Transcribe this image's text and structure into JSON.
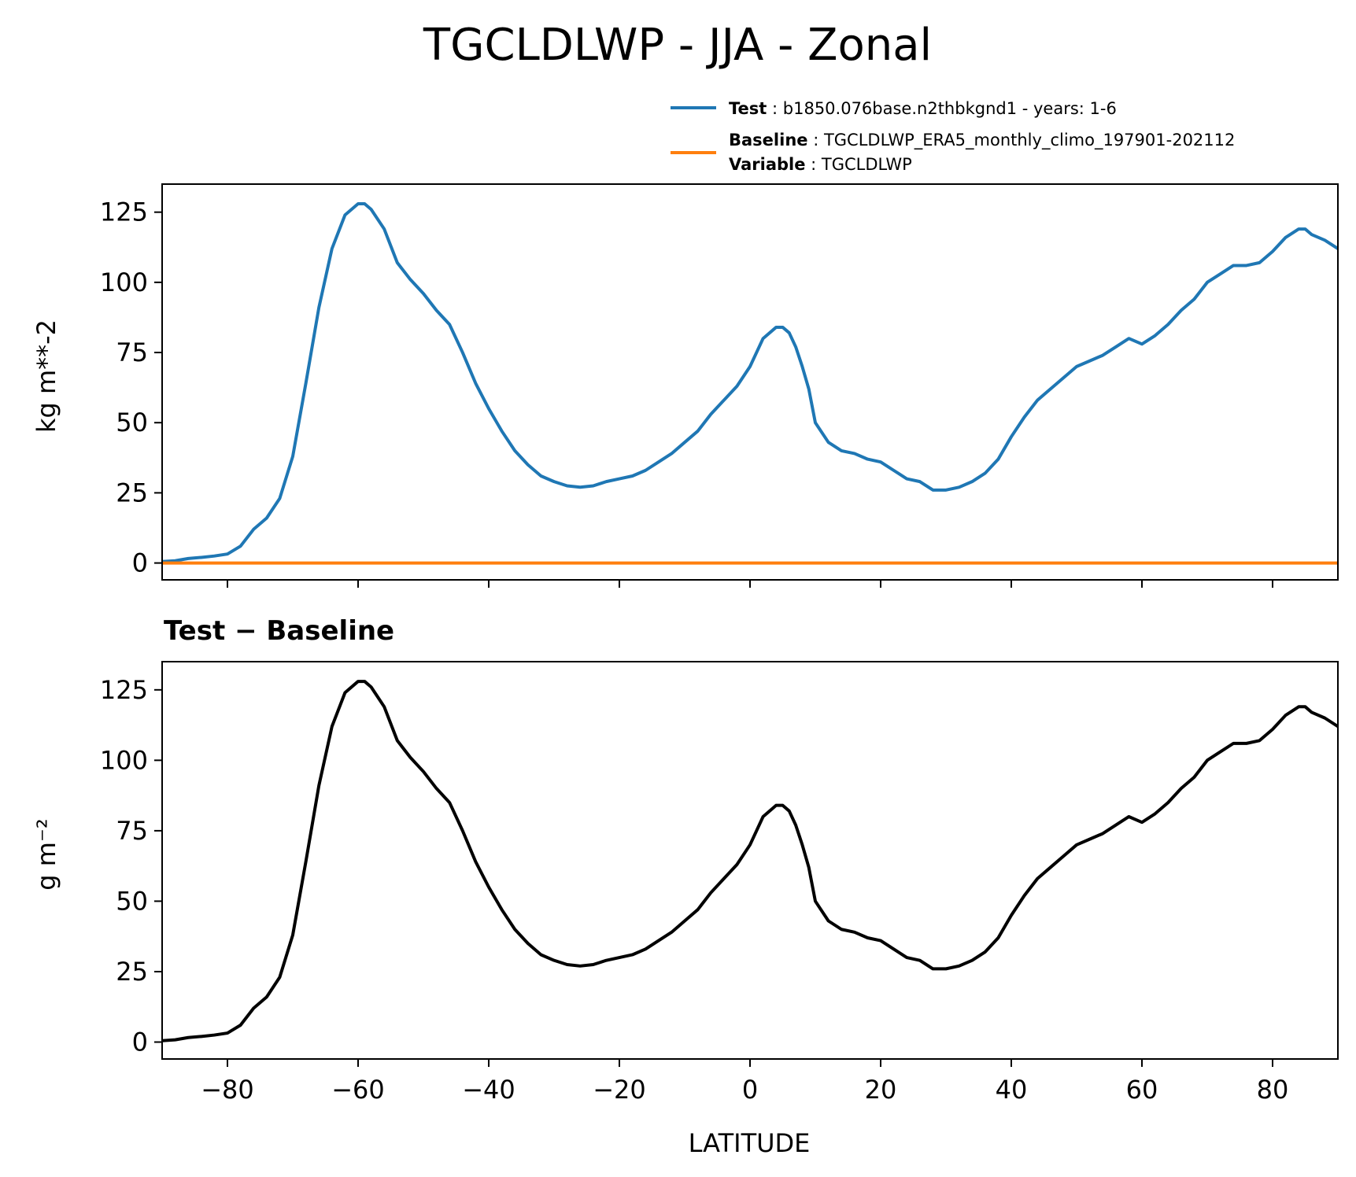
{
  "figure": {
    "title": "TGCLDLWP - JJA - Zonal"
  },
  "legend": {
    "test_key": "Test",
    "test_value": "b1850.076base.n2thbkgnd1 - years: 1-6",
    "baseline_key": "Baseline",
    "baseline_value": "TGCLDLWP_ERA5_monthly_climo_197901-202112",
    "variable_key": "Variable",
    "variable_value": "TGCLDLWP"
  },
  "colors": {
    "test": "#1f77b4",
    "baseline": "#ff7f0e",
    "difference": "#000000"
  },
  "chart_data": [
    {
      "type": "line",
      "title": "",
      "xlabel": "",
      "ylabel": "kg m**-2",
      "xlim": [
        -90,
        90
      ],
      "ylim": [
        -6,
        135
      ],
      "x_ticks": [
        -80,
        -60,
        -40,
        -20,
        0,
        20,
        40,
        60,
        80
      ],
      "y_ticks": [
        0,
        25,
        50,
        75,
        100,
        125
      ],
      "grid": false,
      "legend_position": "above-right",
      "x": [
        -90,
        -88,
        -86,
        -84,
        -82,
        -80,
        -78,
        -76,
        -74,
        -72,
        -70,
        -68,
        -66,
        -64,
        -62,
        -60,
        -59,
        -58,
        -56,
        -54,
        -52,
        -50,
        -48,
        -46,
        -44,
        -42,
        -40,
        -38,
        -36,
        -34,
        -32,
        -30,
        -28,
        -26,
        -24,
        -22,
        -20,
        -18,
        -16,
        -14,
        -12,
        -10,
        -8,
        -6,
        -4,
        -2,
        0,
        2,
        4,
        5,
        6,
        7,
        8,
        9,
        10,
        12,
        14,
        16,
        18,
        20,
        22,
        24,
        26,
        28,
        30,
        32,
        34,
        36,
        38,
        40,
        42,
        44,
        46,
        48,
        50,
        52,
        54,
        56,
        58,
        60,
        62,
        64,
        66,
        68,
        70,
        72,
        74,
        76,
        78,
        80,
        82,
        84,
        85,
        86,
        88,
        90
      ],
      "series": [
        {
          "name": "Test",
          "values": [
            0.5,
            0.8,
            1.6,
            2.0,
            2.5,
            3.2,
            6,
            12,
            16,
            23,
            38,
            64,
            91,
            112,
            124,
            128,
            128,
            126,
            119,
            107,
            101,
            96,
            90,
            85,
            75,
            64,
            55,
            47,
            40,
            35,
            31,
            29,
            27.5,
            27,
            27.5,
            29,
            30,
            31,
            33,
            36,
            39,
            43,
            47,
            53,
            58,
            63,
            70,
            80,
            84,
            84,
            82,
            77,
            70,
            62,
            50,
            43,
            40,
            39,
            37,
            36,
            33,
            30,
            29,
            26,
            26,
            27,
            29,
            32,
            37,
            45,
            52,
            58,
            62,
            66,
            70,
            72,
            74,
            77,
            80,
            78,
            81,
            85,
            90,
            94,
            100,
            103,
            106,
            106,
            107,
            111,
            116,
            119,
            119,
            117,
            115,
            112
          ]
        },
        {
          "name": "Baseline",
          "values": [
            0,
            0,
            0,
            0,
            0,
            0,
            0,
            0,
            0,
            0,
            0,
            0,
            0,
            0,
            0,
            0,
            0,
            0,
            0,
            0,
            0,
            0,
            0,
            0,
            0,
            0,
            0,
            0,
            0,
            0,
            0,
            0,
            0,
            0,
            0,
            0,
            0,
            0,
            0,
            0,
            0,
            0,
            0,
            0,
            0,
            0,
            0,
            0,
            0,
            0,
            0,
            0,
            0,
            0,
            0,
            0,
            0,
            0,
            0,
            0,
            0,
            0,
            0,
            0,
            0,
            0,
            0,
            0,
            0,
            0,
            0,
            0,
            0,
            0,
            0,
            0,
            0,
            0,
            0,
            0,
            0,
            0,
            0,
            0,
            0,
            0,
            0,
            0,
            0,
            0,
            0,
            0,
            0,
            0,
            0,
            0
          ]
        }
      ]
    },
    {
      "type": "line",
      "title": "Test − Baseline",
      "xlabel": "LATITUDE",
      "ylabel": "g m⁻²",
      "xlim": [
        -90,
        90
      ],
      "ylim": [
        -6,
        135
      ],
      "x_ticks": [
        -80,
        -60,
        -40,
        -20,
        0,
        20,
        40,
        60,
        80
      ],
      "x_tick_labels": [
        "−80",
        "−60",
        "−40",
        "−20",
        "0",
        "20",
        "40",
        "60",
        "80"
      ],
      "y_ticks": [
        0,
        25,
        50,
        75,
        100,
        125
      ],
      "grid": false,
      "x": [
        -90,
        -88,
        -86,
        -84,
        -82,
        -80,
        -78,
        -76,
        -74,
        -72,
        -70,
        -68,
        -66,
        -64,
        -62,
        -60,
        -59,
        -58,
        -56,
        -54,
        -52,
        -50,
        -48,
        -46,
        -44,
        -42,
        -40,
        -38,
        -36,
        -34,
        -32,
        -30,
        -28,
        -26,
        -24,
        -22,
        -20,
        -18,
        -16,
        -14,
        -12,
        -10,
        -8,
        -6,
        -4,
        -2,
        0,
        2,
        4,
        5,
        6,
        7,
        8,
        9,
        10,
        12,
        14,
        16,
        18,
        20,
        22,
        24,
        26,
        28,
        30,
        32,
        34,
        36,
        38,
        40,
        42,
        44,
        46,
        48,
        50,
        52,
        54,
        56,
        58,
        60,
        62,
        64,
        66,
        68,
        70,
        72,
        74,
        76,
        78,
        80,
        82,
        84,
        85,
        86,
        88,
        90
      ],
      "series": [
        {
          "values": [
            0.5,
            0.8,
            1.6,
            2.0,
            2.5,
            3.2,
            6,
            12,
            16,
            23,
            38,
            64,
            91,
            112,
            124,
            128,
            128,
            126,
            119,
            107,
            101,
            96,
            90,
            85,
            75,
            64,
            55,
            47,
            40,
            35,
            31,
            29,
            27.5,
            27,
            27.5,
            29,
            30,
            31,
            33,
            36,
            39,
            43,
            47,
            53,
            58,
            63,
            70,
            80,
            84,
            84,
            82,
            77,
            70,
            62,
            50,
            43,
            40,
            39,
            37,
            36,
            33,
            30,
            29,
            26,
            26,
            27,
            29,
            32,
            37,
            45,
            52,
            58,
            62,
            66,
            70,
            72,
            74,
            77,
            80,
            78,
            81,
            85,
            90,
            94,
            100,
            103,
            106,
            106,
            107,
            111,
            116,
            119,
            119,
            117,
            115,
            112
          ]
        }
      ]
    }
  ]
}
